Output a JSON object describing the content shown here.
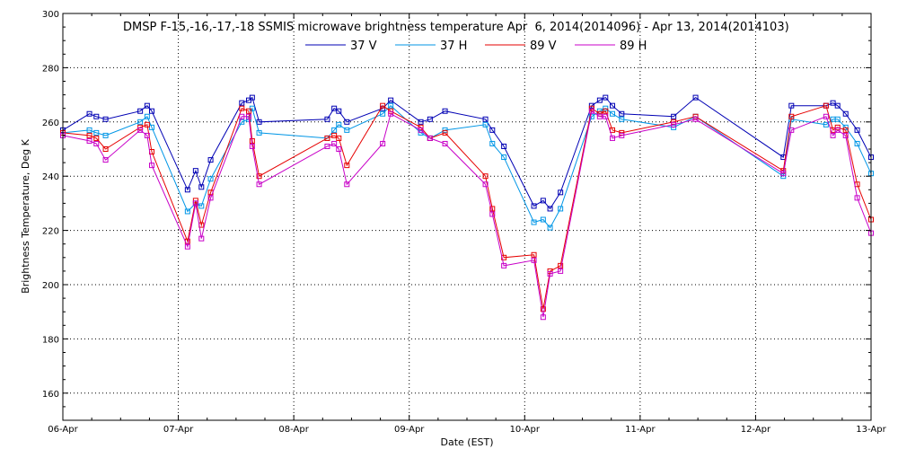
{
  "chart_data": {
    "type": "line",
    "title": "DMSP F-15,-16,-17,-18 SSMIS microwave brightness temperature Apr  6, 2014(2014096) - Apr 13, 2014(2014103)",
    "xlabel": "Date (EST)",
    "ylabel": "Brightness Temperature, Deg K",
    "xlim": [
      0,
      7
    ],
    "ylim": [
      150,
      300
    ],
    "x_ticks": [
      {
        "value": 0,
        "label": "06-Apr"
      },
      {
        "value": 1,
        "label": "07-Apr"
      },
      {
        "value": 2,
        "label": "08-Apr"
      },
      {
        "value": 3,
        "label": "09-Apr"
      },
      {
        "value": 4,
        "label": "10-Apr"
      },
      {
        "value": 5,
        "label": "11-Apr"
      },
      {
        "value": 6,
        "label": "12-Apr"
      },
      {
        "value": 7,
        "label": "13-Apr"
      }
    ],
    "y_ticks": [
      {
        "value": 160,
        "label": "160"
      },
      {
        "value": 180,
        "label": "180"
      },
      {
        "value": 200,
        "label": "200"
      },
      {
        "value": 220,
        "label": "220"
      },
      {
        "value": 240,
        "label": "240"
      },
      {
        "value": 260,
        "label": "260"
      },
      {
        "value": 280,
        "label": "280"
      },
      {
        "value": 300,
        "label": "300"
      }
    ],
    "grid": true,
    "legend_position": "top-center",
    "series": [
      {
        "name": "37 V",
        "color": "#0000b4",
        "x": [
          0.0,
          0.23,
          0.29,
          0.37,
          0.67,
          0.73,
          0.77,
          1.08,
          1.15,
          1.2,
          1.28,
          1.55,
          1.61,
          1.64,
          1.7,
          2.29,
          2.35,
          2.39,
          2.46,
          2.77,
          2.84,
          3.1,
          3.18,
          3.31,
          3.66,
          3.72,
          3.82,
          4.08,
          4.16,
          4.22,
          4.31,
          4.58,
          4.65,
          4.7,
          4.76,
          4.84,
          5.29,
          5.48,
          6.24,
          6.31,
          6.61,
          6.67,
          6.71,
          6.78,
          6.88,
          7.0
        ],
        "y": [
          257,
          263,
          262,
          261,
          264,
          266,
          264,
          235,
          242,
          236,
          246,
          267,
          268,
          269,
          260,
          261,
          265,
          264,
          260,
          265,
          268,
          260,
          261,
          264,
          261,
          257,
          251,
          229,
          231,
          228,
          234,
          266,
          268,
          269,
          266,
          263,
          262,
          269,
          247,
          266,
          266,
          267,
          266,
          263,
          257,
          247
        ]
      },
      {
        "name": "37 H",
        "color": "#0096e6",
        "x": [
          0.0,
          0.23,
          0.29,
          0.37,
          0.67,
          0.73,
          0.77,
          1.08,
          1.15,
          1.2,
          1.28,
          1.55,
          1.61,
          1.64,
          1.7,
          2.29,
          2.35,
          2.39,
          2.46,
          2.77,
          2.84,
          3.1,
          3.18,
          3.31,
          3.66,
          3.72,
          3.82,
          4.08,
          4.16,
          4.22,
          4.31,
          4.58,
          4.65,
          4.7,
          4.76,
          4.84,
          5.29,
          5.48,
          6.24,
          6.31,
          6.61,
          6.67,
          6.71,
          6.78,
          6.88,
          7.0
        ],
        "y": [
          256,
          257,
          256,
          255,
          260,
          262,
          258,
          227,
          230,
          229,
          239,
          260,
          261,
          265,
          256,
          254,
          257,
          259,
          257,
          263,
          266,
          256,
          254,
          257,
          259,
          252,
          247,
          223,
          224,
          221,
          228,
          262,
          264,
          265,
          263,
          261,
          258,
          262,
          240,
          261,
          259,
          261,
          261,
          258,
          252,
          241
        ]
      },
      {
        "name": "89 V",
        "color": "#e60000",
        "x": [
          0.0,
          0.23,
          0.29,
          0.37,
          0.67,
          0.73,
          0.77,
          1.08,
          1.15,
          1.2,
          1.28,
          1.55,
          1.61,
          1.64,
          1.7,
          2.29,
          2.35,
          2.39,
          2.46,
          2.77,
          2.84,
          3.1,
          3.18,
          3.31,
          3.66,
          3.72,
          3.82,
          4.08,
          4.16,
          4.22,
          4.31,
          4.58,
          4.65,
          4.7,
          4.76,
          4.84,
          5.29,
          5.48,
          6.24,
          6.31,
          6.61,
          6.67,
          6.71,
          6.78,
          6.88,
          7.0
        ],
        "y": [
          256,
          255,
          254,
          250,
          258,
          259,
          249,
          216,
          231,
          222,
          234,
          265,
          264,
          253,
          240,
          254,
          255,
          254,
          244,
          266,
          264,
          258,
          254,
          256,
          240,
          228,
          210,
          211,
          191,
          205,
          207,
          265,
          263,
          264,
          257,
          256,
          260,
          262,
          242,
          262,
          266,
          257,
          258,
          257,
          237,
          224
        ]
      },
      {
        "name": "89 H",
        "color": "#c800c8",
        "x": [
          0.0,
          0.23,
          0.29,
          0.37,
          0.67,
          0.73,
          0.77,
          1.08,
          1.15,
          1.2,
          1.28,
          1.55,
          1.61,
          1.64,
          1.7,
          2.29,
          2.35,
          2.39,
          2.46,
          2.77,
          2.84,
          3.1,
          3.18,
          3.31,
          3.66,
          3.72,
          3.82,
          4.08,
          4.16,
          4.22,
          4.31,
          4.58,
          4.65,
          4.7,
          4.76,
          4.84,
          5.29,
          5.48,
          6.24,
          6.31,
          6.61,
          6.67,
          6.71,
          6.78,
          6.88,
          7.0
        ],
        "y": [
          255,
          253,
          252,
          246,
          257,
          255,
          244,
          214,
          230,
          217,
          232,
          262,
          262,
          251,
          237,
          251,
          252,
          250,
          237,
          252,
          263,
          257,
          254,
          252,
          237,
          226,
          207,
          209,
          188,
          204,
          205,
          264,
          262,
          262,
          254,
          255,
          259,
          261,
          241,
          257,
          262,
          255,
          257,
          255,
          232,
          219
        ]
      }
    ]
  }
}
